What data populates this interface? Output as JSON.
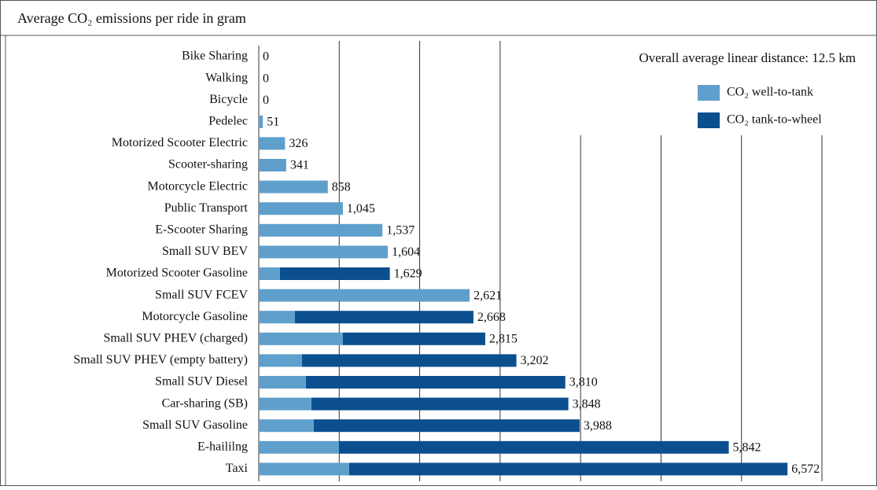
{
  "chart_data": {
    "type": "stacked-barh",
    "title": "Average CO₂ emissions per ride in gram",
    "annotation": "Overall average linear distance: 12.5 km",
    "categories": [
      "Bike Sharing",
      "Walking",
      "Bicycle",
      "Pedelec",
      "Motorized Scooter Electric",
      "Scooter-sharing",
      "Motorcycle Electric",
      "Public Transport",
      "E-Scooter Sharing",
      "Small SUV BEV ",
      "Motorized Scooter Gasoline",
      "Small SUV FCEV",
      "Motorcycle Gasoline",
      "Small SUV PHEV (charged)",
      "Small SUV PHEV (empty battery)",
      "Small SUV Diesel",
      "Car-sharing  (SB)",
      "Small SUV Gasoline",
      "E-haililng",
      "Taxi"
    ],
    "series": [
      {
        "name": "CO₂ well-to-tank",
        "color": "#5f9fcc",
        "values": [
          0,
          0,
          0,
          51,
          326,
          341,
          858,
          1045,
          1537,
          1604,
          264,
          2621,
          449,
          1045,
          537,
          586,
          654,
          684,
          996,
          1123
        ]
      },
      {
        "name": "CO₂ tank-to-wheel",
        "color": "#0b4f8f",
        "values": [
          0,
          0,
          0,
          0,
          0,
          0,
          0,
          0,
          0,
          0,
          1365,
          0,
          2219,
          1770,
          2665,
          3224,
          3194,
          3304,
          4846,
          5449
        ]
      }
    ],
    "totals": [
      0,
      0,
      0,
      51,
      326,
      341,
      858,
      1045,
      1537,
      1604,
      1629,
      2621,
      2668,
      2815,
      3202,
      3810,
      3848,
      3988,
      5842,
      6572
    ],
    "total_labels": [
      "0",
      "0",
      "0",
      "51",
      "326",
      "341",
      "858",
      "1,045",
      "1,537",
      "1,604",
      "1,629",
      "2,621",
      "2,668",
      "2,815",
      "3,202",
      "3,810",
      "3,848",
      "3,988",
      "5,842",
      "6,572"
    ],
    "xlim": [
      0,
      7000
    ],
    "xticks": [
      1000,
      2000,
      3000,
      4000,
      5000,
      6000,
      7000
    ],
    "grid": true
  }
}
